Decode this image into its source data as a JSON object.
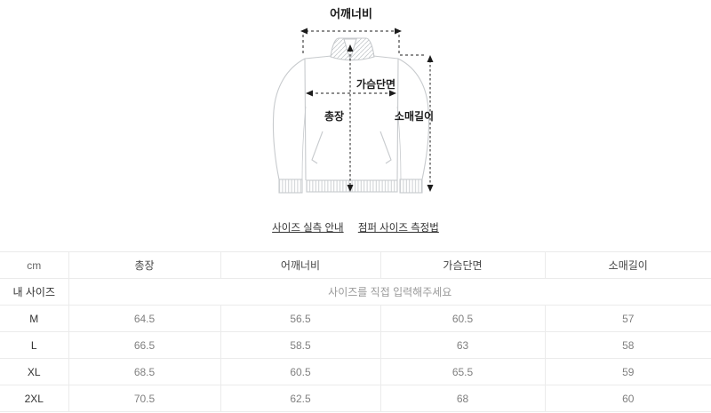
{
  "diagram": {
    "shoulder_label": "어깨너비",
    "chest_label": "가슴단면",
    "length_label": "총장",
    "sleeve_label": "소매길이"
  },
  "size_guide_links": {
    "measure_guide": "사이즈 실측 안내",
    "jumper_guide": "점퍼 사이즈 측정법"
  },
  "size_table": {
    "unit": "cm",
    "columns": [
      "총장",
      "어깨너비",
      "가슴단면",
      "소매길이"
    ],
    "my_size": {
      "label": "내 사이즈",
      "placeholder": "사이즈를 직접 입력해주세요"
    },
    "rows": [
      {
        "size": "M",
        "values": [
          "64.5",
          "56.5",
          "60.5",
          "57"
        ]
      },
      {
        "size": "L",
        "values": [
          "66.5",
          "58.5",
          "63",
          "58"
        ]
      },
      {
        "size": "XL",
        "values": [
          "68.5",
          "60.5",
          "65.5",
          "59"
        ]
      },
      {
        "size": "2XL",
        "values": [
          "70.5",
          "62.5",
          "68",
          "60"
        ]
      }
    ]
  },
  "colors": {
    "jacket_outline": "#c7cacd",
    "measure_line": "#1c1c1c",
    "table_border": "#ebebeb",
    "value_text": "#808080",
    "placeholder_text": "#9a9a9a"
  }
}
